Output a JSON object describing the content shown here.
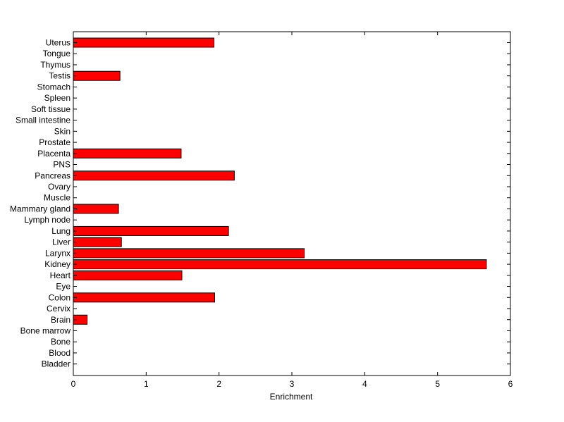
{
  "chart_data": {
    "type": "bar",
    "orientation": "horizontal",
    "categories": [
      "Uterus",
      "Tongue",
      "Thymus",
      "Testis",
      "Stomach",
      "Spleen",
      "Soft tissue",
      "Small intestine",
      "Skin",
      "Prostate",
      "Placenta",
      "PNS",
      "Pancreas",
      "Ovary",
      "Muscle",
      "Mammary gland",
      "Lymph node",
      "Lung",
      "Liver",
      "Larynx",
      "Kidney",
      "Heart",
      "Eye",
      "Colon",
      "Cervix",
      "Brain",
      "Bone marrow",
      "Bone",
      "Blood",
      "Bladder"
    ],
    "values": [
      1.93,
      0,
      0,
      0.64,
      0,
      0,
      0,
      0,
      0,
      0,
      1.48,
      0,
      2.21,
      0,
      0,
      0.62,
      0,
      2.13,
      0.66,
      3.17,
      5.67,
      1.49,
      0,
      1.94,
      0,
      0.19,
      0,
      0,
      0,
      0
    ],
    "xlabel": "Enrichment",
    "ylabel": "",
    "title": "",
    "xlim": [
      0,
      6
    ],
    "xticks": [
      "0",
      "1",
      "2",
      "3",
      "4",
      "5",
      "6"
    ],
    "grid": false,
    "bar_color": "#ff0000",
    "bar_edge_color": "#000000"
  }
}
